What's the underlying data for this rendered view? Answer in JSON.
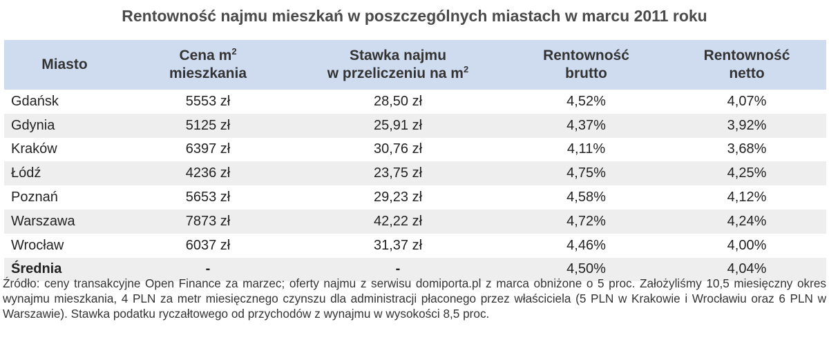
{
  "title": "Rentowność najmu mieszkań w poszczególnych miastach w marcu 2011 roku",
  "chart_data": {
    "type": "table",
    "title": "Rentowność najmu mieszkań w poszczególnych miastach w marcu 2011 roku",
    "headers": {
      "city": "Miasto",
      "price_line1": "Cena m",
      "price_sup": "2",
      "price_line2": "mieszkania",
      "rate_line1": "Stawka najmu",
      "rate_line2": "w przeliczeniu na m",
      "rate_sup": "2",
      "brutto_line1": "Rentowność",
      "brutto_line2": "brutto",
      "netto_line1": "Rentowność",
      "netto_line2": "netto"
    },
    "rows": [
      {
        "city": "Gdańsk",
        "price": "5553 zł",
        "rate": "28,50 zł",
        "brutto": "4,52%",
        "netto": "4,07%"
      },
      {
        "city": "Gdynia",
        "price": "5125 zł",
        "rate": "25,91 zł",
        "brutto": "4,37%",
        "netto": "3,92%"
      },
      {
        "city": "Kraków",
        "price": "6397 zł",
        "rate": "30,76 zł",
        "brutto": "4,11%",
        "netto": "3,68%"
      },
      {
        "city": "Łódź",
        "price": "4236 zł",
        "rate": "23,75 zł",
        "brutto": "4,75%",
        "netto": "4,25%"
      },
      {
        "city": "Poznań",
        "price": "5653 zł",
        "rate": "29,23 zł",
        "brutto": "4,58%",
        "netto": "4,12%"
      },
      {
        "city": "Warszawa",
        "price": "7873 zł",
        "rate": "42,22 zł",
        "brutto": "4,72%",
        "netto": "4,24%"
      },
      {
        "city": "Wrocław",
        "price": "6037 zł",
        "rate": "31,37 zł",
        "brutto": "4,46%",
        "netto": "4,00%"
      },
      {
        "city": "Średnia",
        "price": "-",
        "rate": "-",
        "brutto": "4,50%",
        "netto": "4,04%"
      }
    ],
    "alternating_row_color": "#eeeeee",
    "header_color": "#cfdcf0"
  },
  "footnote": "Źródło: ceny transakcyjne Open Finance za marzec; oferty najmu z serwisu domiporta.pl z marca obniżone o 5 proc. Założyliśmy 10,5 miesięczny okres wynajmu mieszkania, 4 PLN za metr miesięcznego czynszu dla administracji płaconego przez właściciela (5 PLN w Krakowie i Wrocławiu oraz 6 PLN w Warszawie). Stawka podatku ryczałtowego od przychodów z wynajmu w wysokości 8,5 proc."
}
